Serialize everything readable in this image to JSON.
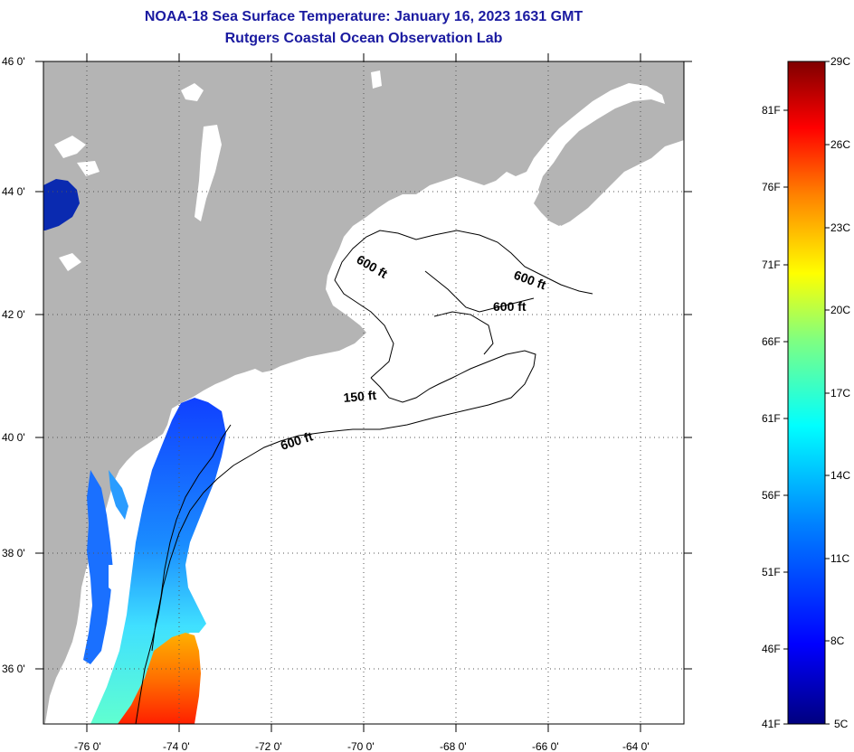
{
  "title": "NOAA-18 Sea Surface Temperature:  January 16, 2023 1631 GMT",
  "subtitle": "Rutgers Coastal Ocean Observation Lab",
  "map": {
    "lon_range": [
      -77.0,
      -63.0
    ],
    "lat_range": [
      35.0,
      46.0
    ],
    "lon_ticks": [
      "-76 0'",
      "-74 0'",
      "-72 0'",
      "-70 0'",
      "-68 0'",
      "-66 0'",
      "-64 0'"
    ],
    "lat_ticks": [
      "46 0'",
      "44 0'",
      "42 0'",
      "40 0'",
      "38 0'",
      "36 0'"
    ],
    "grid": "dotted",
    "colors": {
      "land": "#b4b4b4",
      "no_data": "#ffffff",
      "contour": "#000000"
    },
    "contour_labels": [
      "600 ft",
      "600 ft",
      "600 ft",
      "150 ft",
      "600 ft"
    ]
  },
  "colorbar": {
    "celsius_labels": [
      "29C",
      "26C",
      "23C",
      "20C",
      "17C",
      "14C",
      "11C",
      "8C",
      "5C"
    ],
    "fahrenheit_labels": [
      "81F",
      "76F",
      "71F",
      "66F",
      "61F",
      "56F",
      "51F",
      "46F",
      "41F"
    ],
    "range_c": [
      5,
      29
    ],
    "stops": [
      "#00007f",
      "#0000ff",
      "#0080ff",
      "#00ffff",
      "#80ff80",
      "#ffff00",
      "#ff8000",
      "#ff0000",
      "#7f0000"
    ]
  }
}
